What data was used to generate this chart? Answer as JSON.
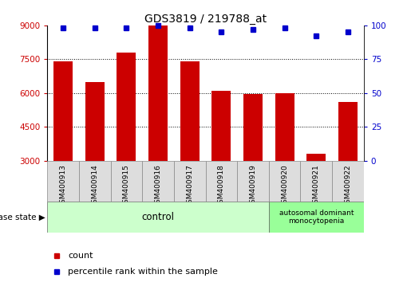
{
  "title": "GDS3819 / 219788_at",
  "samples": [
    "GSM400913",
    "GSM400914",
    "GSM400915",
    "GSM400916",
    "GSM400917",
    "GSM400918",
    "GSM400919",
    "GSM400920",
    "GSM400921",
    "GSM400922"
  ],
  "counts": [
    7400,
    6500,
    7800,
    9000,
    7400,
    6100,
    5950,
    6000,
    3300,
    5600
  ],
  "percentile_ranks": [
    98,
    98,
    98,
    100,
    98,
    95,
    97,
    98,
    92,
    95
  ],
  "bar_color": "#cc0000",
  "dot_color": "#0000cc",
  "ylim_left": [
    3000,
    9000
  ],
  "ylim_right": [
    0,
    100
  ],
  "yticks_left": [
    3000,
    4500,
    6000,
    7500,
    9000
  ],
  "yticks_right": [
    0,
    25,
    50,
    75,
    100
  ],
  "grid_values": [
    4500,
    6000,
    7500
  ],
  "control_samples": 7,
  "control_label": "control",
  "disease_label": "autosomal dominant\nmonocytopenia",
  "disease_state_label": "disease state",
  "legend_count": "count",
  "legend_percentile": "percentile rank within the sample",
  "control_bg": "#ccffcc",
  "disease_bg": "#99ff99",
  "tick_bg": "#dddddd",
  "bar_bottom": 3000
}
